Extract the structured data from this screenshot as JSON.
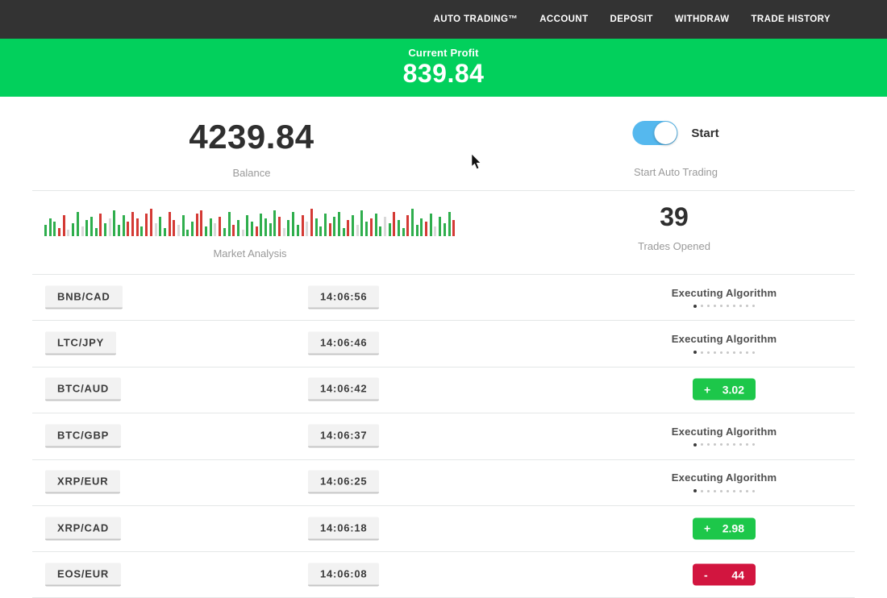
{
  "nav": {
    "items": [
      {
        "name": "nav-auto-trading",
        "label": "AUTO TRADING™"
      },
      {
        "name": "nav-account",
        "label": "ACCOUNT"
      },
      {
        "name": "nav-deposit",
        "label": "DEPOSIT"
      },
      {
        "name": "nav-withdraw",
        "label": "WITHDRAW"
      },
      {
        "name": "nav-trade-history",
        "label": "TRADE HISTORY"
      }
    ]
  },
  "profit_banner": {
    "label": "Current Profit",
    "value": "839.84"
  },
  "account": {
    "balance_value": "4239.84",
    "balance_label": "Balance",
    "toggle_label": "Start",
    "toggle_caption": "Start Auto Trading",
    "toggle_on": true
  },
  "market": {
    "label": "Market Analysis",
    "trades_value": "39",
    "trades_label": "Trades Opened",
    "bars": [
      [
        14,
        "g"
      ],
      [
        22,
        "g"
      ],
      [
        18,
        "g"
      ],
      [
        10,
        "r"
      ],
      [
        26,
        "r"
      ],
      [
        8,
        "n"
      ],
      [
        16,
        "g"
      ],
      [
        30,
        "g"
      ],
      [
        12,
        "n"
      ],
      [
        20,
        "g"
      ],
      [
        24,
        "g"
      ],
      [
        10,
        "g"
      ],
      [
        28,
        "r"
      ],
      [
        16,
        "g"
      ],
      [
        22,
        "n"
      ],
      [
        32,
        "g"
      ],
      [
        14,
        "g"
      ],
      [
        26,
        "g"
      ],
      [
        18,
        "r"
      ],
      [
        30,
        "r"
      ],
      [
        22,
        "r"
      ],
      [
        12,
        "g"
      ],
      [
        28,
        "r"
      ],
      [
        34,
        "r"
      ],
      [
        16,
        "n"
      ],
      [
        24,
        "g"
      ],
      [
        10,
        "g"
      ],
      [
        30,
        "r"
      ],
      [
        20,
        "r"
      ],
      [
        14,
        "n"
      ],
      [
        26,
        "g"
      ],
      [
        8,
        "g"
      ],
      [
        18,
        "g"
      ],
      [
        28,
        "r"
      ],
      [
        32,
        "r"
      ],
      [
        12,
        "g"
      ],
      [
        22,
        "g"
      ],
      [
        16,
        "n"
      ],
      [
        24,
        "r"
      ],
      [
        10,
        "g"
      ],
      [
        30,
        "g"
      ],
      [
        14,
        "r"
      ],
      [
        20,
        "g"
      ],
      [
        8,
        "n"
      ],
      [
        26,
        "g"
      ],
      [
        18,
        "g"
      ],
      [
        12,
        "r"
      ],
      [
        28,
        "g"
      ],
      [
        22,
        "g"
      ],
      [
        16,
        "g"
      ],
      [
        32,
        "g"
      ],
      [
        24,
        "r"
      ],
      [
        10,
        "n"
      ],
      [
        20,
        "g"
      ],
      [
        30,
        "g"
      ],
      [
        14,
        "g"
      ],
      [
        26,
        "r"
      ],
      [
        18,
        "n"
      ],
      [
        34,
        "r"
      ],
      [
        22,
        "g"
      ],
      [
        12,
        "g"
      ],
      [
        28,
        "g"
      ],
      [
        16,
        "r"
      ],
      [
        24,
        "g"
      ],
      [
        30,
        "g"
      ],
      [
        10,
        "g"
      ],
      [
        20,
        "r"
      ],
      [
        26,
        "g"
      ],
      [
        14,
        "n"
      ],
      [
        32,
        "g"
      ],
      [
        18,
        "g"
      ],
      [
        22,
        "r"
      ],
      [
        28,
        "g"
      ],
      [
        12,
        "g"
      ],
      [
        24,
        "n"
      ],
      [
        16,
        "g"
      ],
      [
        30,
        "r"
      ],
      [
        20,
        "g"
      ],
      [
        10,
        "g"
      ],
      [
        26,
        "r"
      ],
      [
        34,
        "g"
      ],
      [
        14,
        "g"
      ],
      [
        22,
        "g"
      ],
      [
        18,
        "r"
      ],
      [
        28,
        "g"
      ],
      [
        12,
        "n"
      ],
      [
        24,
        "g"
      ],
      [
        16,
        "g"
      ],
      [
        30,
        "g"
      ],
      [
        20,
        "r"
      ]
    ]
  },
  "strings": {
    "executing_label": "Executing Algorithm",
    "dots_total": 10
  },
  "trades": [
    {
      "pair": "BNB/CAD",
      "time": "14:06:56",
      "status": "executing"
    },
    {
      "pair": "LTC/JPY",
      "time": "14:06:46",
      "status": "executing"
    },
    {
      "pair": "BTC/AUD",
      "time": "14:06:42",
      "status": "profit",
      "sign": "+",
      "amount": "3.02"
    },
    {
      "pair": "BTC/GBP",
      "time": "14:06:37",
      "status": "executing"
    },
    {
      "pair": "XRP/EUR",
      "time": "14:06:25",
      "status": "executing"
    },
    {
      "pair": "XRP/CAD",
      "time": "14:06:18",
      "status": "profit",
      "sign": "+",
      "amount": "2.98"
    },
    {
      "pair": "EOS/EUR",
      "time": "14:06:08",
      "status": "loss",
      "sign": "-",
      "amount": "44"
    }
  ],
  "colors": {
    "nav_bg": "#333333",
    "banner_green": "#02d05c",
    "toggle_blue": "#55b8ee",
    "profit_green": "#1dc74a",
    "loss_red": "#d2153f",
    "bar_green": "#2fae4d",
    "bar_red": "#d43a35",
    "bar_neutral": "#d9d9d9",
    "divider": "#e4e7e7",
    "label_gray": "#9a9a9a",
    "dark_text": "#2f2f2f",
    "badge_bg": "#f2f2f2",
    "badge_border": "#c6c6c6",
    "badge_text": "#3b3b3b",
    "status_text": "#4f4f4f",
    "dot_active": "#3a3a3a",
    "dot_inactive": "#c6c6c6"
  }
}
